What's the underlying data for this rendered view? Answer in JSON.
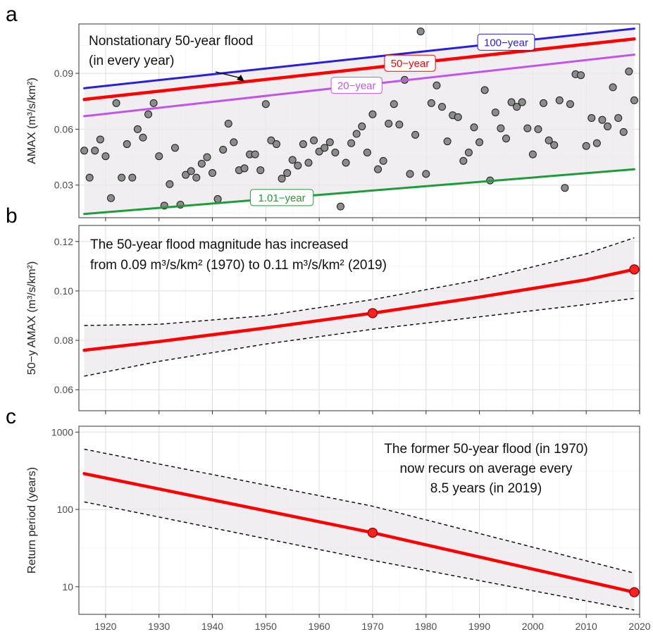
{
  "figure": {
    "panel_letters": [
      "a",
      "b",
      "c"
    ]
  },
  "chart_data": [
    {
      "panel": "a",
      "type": "scatter",
      "ylabel": "AMAX (m³/s/km²)",
      "xlim": [
        1915,
        2020
      ],
      "ylim": [
        0.0125,
        0.1165
      ],
      "yticks": [
        0.03,
        0.06,
        0.09
      ],
      "ytick_labels": [
        "0.03",
        "0.06",
        "0.09"
      ],
      "grid": true,
      "annotation": [
        "Nonstationary 50-year flood",
        "(in every year)"
      ],
      "x": [
        1916,
        1917,
        1918,
        1919,
        1920,
        1921,
        1922,
        1923,
        1924,
        1925,
        1926,
        1927,
        1928,
        1929,
        1930,
        1931,
        1932,
        1933,
        1934,
        1935,
        1936,
        1937,
        1938,
        1939,
        1940,
        1941,
        1942,
        1943,
        1944,
        1945,
        1946,
        1947,
        1948,
        1949,
        1950,
        1951,
        1952,
        1953,
        1954,
        1955,
        1956,
        1957,
        1958,
        1959,
        1960,
        1961,
        1962,
        1963,
        1964,
        1965,
        1966,
        1967,
        1968,
        1969,
        1970,
        1971,
        1972,
        1973,
        1974,
        1975,
        1976,
        1977,
        1978,
        1979,
        1980,
        1981,
        1982,
        1983,
        1984,
        1985,
        1986,
        1987,
        1988,
        1989,
        1990,
        1991,
        1992,
        1993,
        1994,
        1995,
        1996,
        1997,
        1998,
        1999,
        2000,
        2001,
        2002,
        2003,
        2004,
        2005,
        2006,
        2007,
        2008,
        2009,
        2010,
        2011,
        2012,
        2013,
        2014,
        2015,
        2016,
        2017,
        2018,
        2019
      ],
      "y": [
        0.0485,
        0.034,
        0.0485,
        0.0545,
        0.0455,
        0.023,
        0.074,
        0.034,
        0.052,
        0.034,
        0.06,
        0.0555,
        0.068,
        0.074,
        0.0455,
        0.019,
        0.0305,
        0.05,
        0.0195,
        0.0355,
        0.0375,
        0.034,
        0.0415,
        0.045,
        0.0365,
        0.0225,
        0.049,
        0.063,
        0.053,
        0.038,
        0.039,
        0.0465,
        0.0465,
        0.038,
        0.0735,
        0.054,
        0.052,
        0.0335,
        0.0365,
        0.0435,
        0.0405,
        0.052,
        0.042,
        0.054,
        0.048,
        0.05,
        0.053,
        0.0475,
        0.0185,
        0.042,
        0.0525,
        0.0575,
        0.0615,
        0.0475,
        0.068,
        0.0385,
        0.043,
        0.063,
        0.0735,
        0.0625,
        0.0865,
        0.036,
        0.057,
        0.1125,
        0.036,
        0.074,
        0.0835,
        0.072,
        0.0535,
        0.0675,
        0.0665,
        0.043,
        0.0475,
        0.061,
        0.053,
        0.081,
        0.0325,
        0.069,
        0.0605,
        0.055,
        0.0745,
        0.072,
        0.0745,
        0.0605,
        0.0465,
        0.06,
        0.074,
        0.054,
        0.0515,
        0.0755,
        0.0285,
        0.0735,
        0.0895,
        0.089,
        0.051,
        0.066,
        0.0525,
        0.065,
        0.0615,
        0.0825,
        0.066,
        0.0585,
        0.091,
        0.0755
      ],
      "series": [
        {
          "name": "100−year",
          "color": "#2b1ed8",
          "x": [
            1916,
            2019
          ],
          "values": [
            0.082,
            0.114
          ]
        },
        {
          "name": "50−year",
          "color": "#ff0000",
          "x": [
            1916,
            2019
          ],
          "values": [
            0.076,
            0.1085
          ]
        },
        {
          "name": "20−year",
          "color": "#c155e8",
          "x": [
            1916,
            2019
          ],
          "values": [
            0.067,
            0.1
          ]
        },
        {
          "name": "1.01−year",
          "color": "#1f9c3a",
          "x": [
            1916,
            2019
          ],
          "values": [
            0.0145,
            0.0385
          ]
        }
      ],
      "band": {
        "x": [
          1916,
          2019
        ],
        "lower": [
          0.0145,
          0.0385
        ],
        "upper": [
          0.082,
          0.114
        ]
      }
    },
    {
      "panel": "b",
      "type": "line",
      "ylabel": "50−y AMAX (m³/s/km²)",
      "xlim": [
        1915,
        2020
      ],
      "ylim": [
        0.0515,
        0.1265
      ],
      "yticks": [
        0.06,
        0.08,
        0.1,
        0.12
      ],
      "ytick_labels": [
        "0.06",
        "0.08",
        "0.10",
        "0.12"
      ],
      "grid": true,
      "annotation": [
        "The 50-year flood magnitude has increased",
        "from 0.09 m³/s/km² (1970) to 0.11 m³/s/km² (2019)"
      ],
      "x": [
        1916,
        1930,
        1950,
        1970,
        1990,
        2010,
        2019
      ],
      "estimate": [
        0.076,
        0.0795,
        0.085,
        0.091,
        0.0975,
        0.1045,
        0.1087
      ],
      "lower": [
        0.0655,
        0.0715,
        0.0785,
        0.0845,
        0.0895,
        0.0945,
        0.097
      ],
      "upper": [
        0.086,
        0.0865,
        0.09,
        0.0965,
        0.1045,
        0.115,
        0.1215
      ],
      "highlight": {
        "x": [
          1970,
          2019
        ],
        "y": [
          0.091,
          0.1087
        ]
      }
    },
    {
      "panel": "c",
      "type": "line",
      "ylabel": "Return period (years)",
      "yscale": "log",
      "xlim": [
        1915,
        2020
      ],
      "ylim": [
        4.4,
        1190
      ],
      "yticks": [
        10,
        100,
        1000
      ],
      "ytick_labels": [
        "10",
        "100",
        "1000"
      ],
      "xticks": [
        1920,
        1930,
        1940,
        1950,
        1960,
        1970,
        1980,
        1990,
        2000,
        2010,
        2020
      ],
      "xtick_labels": [
        "1920",
        "1930",
        "1940",
        "1950",
        "1960",
        "1970",
        "1980",
        "1990",
        "2000",
        "2010",
        "2020"
      ],
      "grid": true,
      "annotation": [
        "The former 50-year flood (in 1970)",
        "now recurs on average every",
        "8.5 years (in 2019)"
      ],
      "x": [
        1916,
        1970,
        2019
      ],
      "estimate": [
        290,
        50,
        8.5
      ],
      "lower": [
        125,
        22,
        5
      ],
      "upper": [
        600,
        110,
        15
      ],
      "highlight": {
        "x": [
          1970,
          2019
        ],
        "y": [
          50,
          8.5
        ]
      }
    }
  ]
}
